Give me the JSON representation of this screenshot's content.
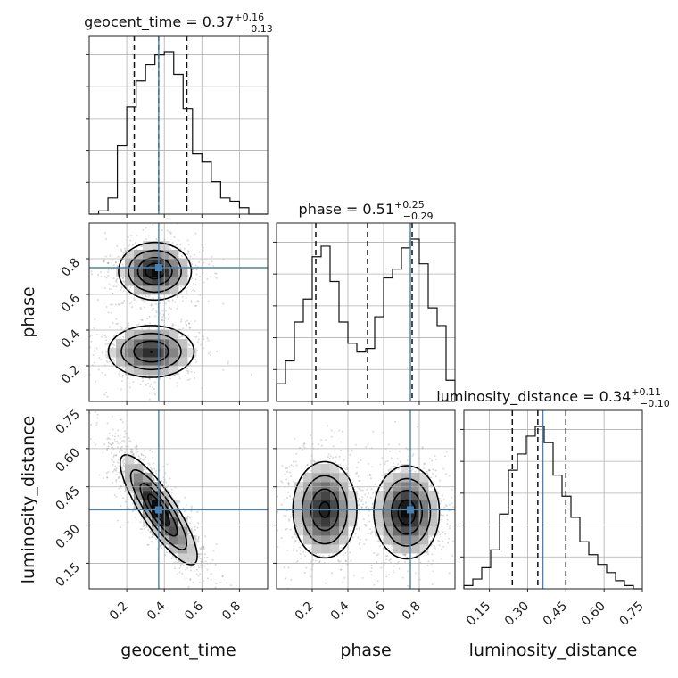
{
  "chart_data": {
    "type": "corner",
    "parameters": [
      "geocent_time",
      "phase",
      "luminosity_distance"
    ],
    "truths": [
      0.37,
      0.75,
      0.36
    ],
    "titles": [
      {
        "param": "geocent_time",
        "prefix": "geocent_time = ",
        "median": "0.37",
        "plus": "+0.16",
        "minus": "−0.13"
      },
      {
        "param": "phase",
        "prefix": "phase = ",
        "median": "0.51",
        "plus": "+0.25",
        "minus": "−0.29"
      },
      {
        "param": "luminosity_distance",
        "prefix": "luminosity_distance = ",
        "median": "0.34",
        "plus": "+0.11",
        "minus": "−0.10"
      }
    ],
    "axis_labels": {
      "x": [
        "geocent_time",
        "phase",
        "luminosity_distance"
      ],
      "y": [
        "phase",
        "luminosity_distance"
      ]
    },
    "ranges": {
      "geocent_time": [
        0.0,
        0.95
      ],
      "phase": [
        0.0,
        1.0
      ],
      "luminosity_distance": [
        0.05,
        0.75
      ]
    },
    "ticks": {
      "geocent_time": [
        "0.2",
        "0.4",
        "0.6",
        "0.8"
      ],
      "phase": [
        "0.2",
        "0.4",
        "0.6",
        "0.8"
      ],
      "luminosity_distance": [
        "0.15",
        "0.30",
        "0.45",
        "0.60",
        "0.75"
      ]
    },
    "quantile_lines": {
      "geocent_time": [
        0.24,
        0.37,
        0.52
      ],
      "phase": [
        0.22,
        0.51,
        0.76
      ],
      "luminosity_distance": [
        0.24,
        0.34,
        0.45
      ]
    },
    "histograms": {
      "geocent_time": {
        "bin_edges": [
          0.0,
          0.05,
          0.1,
          0.15,
          0.2,
          0.25,
          0.3,
          0.35,
          0.4,
          0.45,
          0.5,
          0.55,
          0.6,
          0.65,
          0.7,
          0.75,
          0.8,
          0.85,
          0.9,
          0.95
        ],
        "counts": [
          0.0,
          0.02,
          0.1,
          0.42,
          0.66,
          0.82,
          0.92,
          0.98,
          1.0,
          0.86,
          0.65,
          0.37,
          0.32,
          0.2,
          0.1,
          0.08,
          0.04,
          0.0,
          0.0
        ]
      },
      "phase": {
        "bin_edges": [
          0.0,
          0.05,
          0.1,
          0.15,
          0.2,
          0.25,
          0.3,
          0.35,
          0.4,
          0.45,
          0.5,
          0.55,
          0.6,
          0.65,
          0.7,
          0.75,
          0.8,
          0.85,
          0.9,
          0.95,
          1.0
        ],
        "counts": [
          0.1,
          0.23,
          0.45,
          0.58,
          0.82,
          0.88,
          0.68,
          0.45,
          0.33,
          0.28,
          0.3,
          0.48,
          0.7,
          0.75,
          0.87,
          0.92,
          0.78,
          0.53,
          0.43,
          0.12
        ]
      },
      "luminosity_distance": {
        "bin_edges": [
          0.05,
          0.085,
          0.12,
          0.155,
          0.19,
          0.225,
          0.26,
          0.295,
          0.33,
          0.365,
          0.4,
          0.435,
          0.47,
          0.505,
          0.54,
          0.575,
          0.61,
          0.645,
          0.68,
          0.715,
          0.75
        ],
        "counts": [
          0.02,
          0.06,
          0.13,
          0.24,
          0.46,
          0.73,
          0.83,
          0.94,
          1.0,
          0.9,
          0.7,
          0.57,
          0.44,
          0.29,
          0.21,
          0.15,
          0.1,
          0.05,
          0.02,
          0.0
        ]
      }
    },
    "density_clusters": [
      {
        "pair": [
          "geocent_time",
          "phase"
        ],
        "centers": [
          [
            0.35,
            0.73,
            0.09,
            0.075,
            1.0,
            0.0
          ],
          [
            0.33,
            0.28,
            0.11,
            0.07,
            0.85,
            0.0
          ]
        ]
      },
      {
        "pair": [
          "geocent_time",
          "luminosity_distance"
        ],
        "centers": [
          [
            0.37,
            0.36,
            0.095,
            0.1,
            1.0,
            -0.85
          ]
        ]
      },
      {
        "pair": [
          "phase",
          "luminosity_distance"
        ],
        "centers": [
          [
            0.27,
            0.36,
            0.085,
            0.09,
            0.9,
            0.0
          ],
          [
            0.73,
            0.35,
            0.085,
            0.085,
            1.0,
            0.0
          ]
        ]
      }
    ],
    "grid": true
  }
}
